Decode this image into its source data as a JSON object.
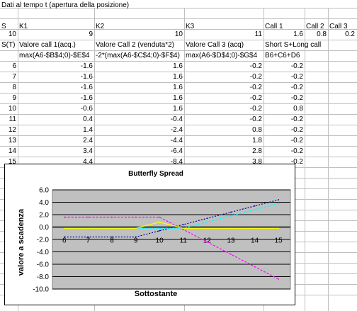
{
  "colors": {
    "gridline": "#c0c0c0",
    "plot_bg": "#c0c0c0",
    "call1": "#0000a0",
    "call2": "#ff00ff",
    "call3": "#ffff00",
    "total": "#00ffff"
  },
  "header": {
    "title": "Dati al tempo t (apertura della posizione)",
    "labels": [
      "S",
      "K1",
      "K2",
      "K3",
      "Call 1",
      "Call 2",
      "Call 3"
    ],
    "values": [
      "10",
      "9",
      "10",
      "11",
      "1.6",
      "0.8",
      "0.2"
    ]
  },
  "table": {
    "col_headers": [
      "S(T)",
      "Valore call 1(acq.)",
      "Valore Call 2 (venduta*2)",
      "Valore Call 3 (acq)",
      "Short S+Long call"
    ],
    "formulas": [
      "",
      "max(A6-$B$4;0)-$E$4",
      "-2*(max(A6-$C$4;0)-$F$4)",
      "max(A6-$D$4;0)-$G$4",
      "B6+C6+D6"
    ],
    "rows": [
      [
        "6",
        "-1.6",
        "1.6",
        "-0.2",
        "-0.2"
      ],
      [
        "7",
        "-1.6",
        "1.6",
        "-0.2",
        "-0.2"
      ],
      [
        "8",
        "-1.6",
        "1.6",
        "-0.2",
        "-0.2"
      ],
      [
        "9",
        "-1.6",
        "1.6",
        "-0.2",
        "-0.2"
      ],
      [
        "10",
        "-0.6",
        "1.6",
        "-0.2",
        "0.8"
      ],
      [
        "11",
        "0.4",
        "-0.4",
        "-0.2",
        "-0.2"
      ],
      [
        "12",
        "1.4",
        "-2.4",
        "0.8",
        "-0.2"
      ],
      [
        "13",
        "2.4",
        "-4.4",
        "1.8",
        "-0.2"
      ],
      [
        "14",
        "3.4",
        "-6.4",
        "2.8",
        "-0.2"
      ],
      [
        "15",
        "4.4",
        "-8.4",
        "3.8",
        "-0.2"
      ]
    ]
  },
  "chart_data": {
    "type": "line",
    "title": "Butterfly Spread",
    "xlabel": "Sottostante",
    "ylabel": "valore a scadenza",
    "x": [
      6,
      7,
      8,
      9,
      10,
      11,
      12,
      13,
      14,
      15
    ],
    "categories": [
      "6",
      "7",
      "8",
      "9",
      "10",
      "11",
      "12",
      "13",
      "14",
      "15"
    ],
    "ylim": [
      -10,
      6
    ],
    "yticks": [
      "6.0",
      "4.0",
      "2.0",
      "0.0",
      "-2.0",
      "-4.0",
      "-6.0",
      "-8.0",
      "-10.0"
    ],
    "ytick_values": [
      6,
      4,
      2,
      0,
      -2,
      -4,
      -6,
      -8,
      -10
    ],
    "grid": true,
    "series": [
      {
        "values": [
          -1.6,
          -1.6,
          -1.6,
          -1.6,
          -0.6,
          0.4,
          1.4,
          2.4,
          3.4,
          4.4
        ],
        "color": "#0000a0",
        "dash": "2,2"
      },
      {
        "values": [
          1.6,
          1.6,
          1.6,
          1.6,
          1.6,
          -0.4,
          -2.4,
          -4.4,
          -6.4,
          -8.4
        ],
        "color": "#ff00ff",
        "dash": "3,2"
      },
      {
        "values": [
          -0.2,
          -0.2,
          -0.2,
          -0.2,
          -0.2,
          -0.2,
          0.8,
          1.8,
          2.8,
          3.8
        ],
        "color": "#00ffff",
        "dash": "3,2"
      },
      {
        "values": [
          -0.2,
          -0.2,
          -0.2,
          -0.2,
          0.8,
          -0.2,
          -0.2,
          -0.2,
          -0.2,
          -0.2
        ],
        "color": "#ffff00",
        "dash": ""
      }
    ]
  }
}
